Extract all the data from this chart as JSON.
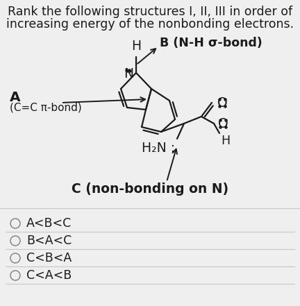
{
  "title_line1": "Rank the following structures I, II, III in order of",
  "title_line2": "increasing energy of the nonbonding electrons.",
  "bg_color": "#efefef",
  "text_color": "#1a1a1a",
  "options": [
    "A<B<C",
    "B<A<C",
    "C<B<A",
    "C<A<B"
  ],
  "label_A": "A",
  "label_A_sub": "(C=C π-bond)",
  "label_B": "B (N-H σ-bond)",
  "label_C": "C (non-bonding on N)",
  "H2N_label": "H₂N :"
}
